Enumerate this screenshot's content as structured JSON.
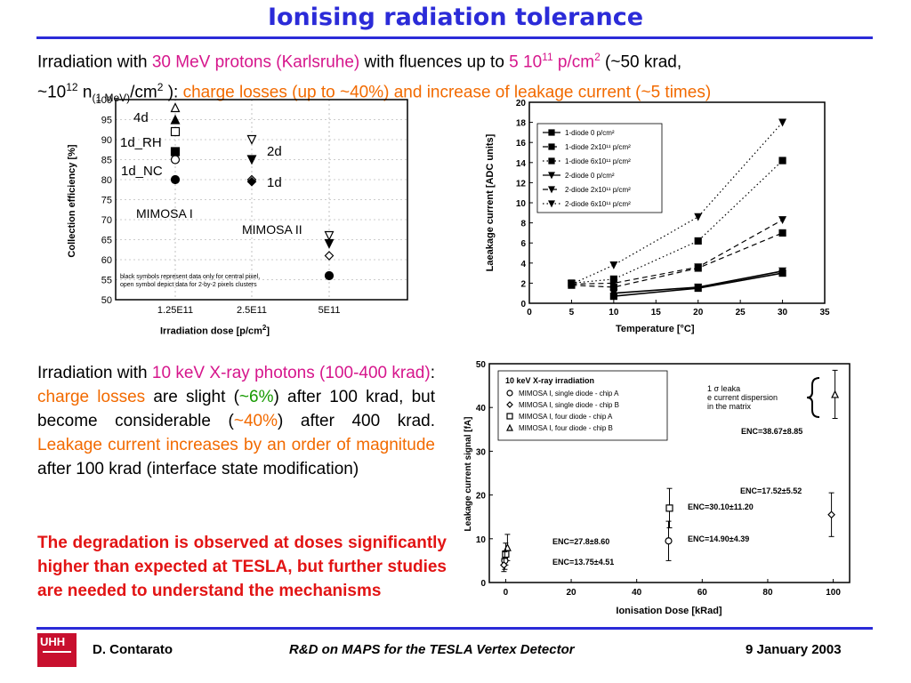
{
  "title": "Ionising radiation tolerance",
  "intro": {
    "l1_a": "Irradiation with ",
    "l1_b": "30 MeV protons (Karlsruhe)",
    "l1_c": " with fluences up to ",
    "l1_d": "5 10",
    "l1_d_sup": "11",
    "l1_e": " p/cm",
    "l1_e_sup": "2",
    "l1_f": " (~50 krad,",
    "l2_a": "~10",
    "l2_a_sup": "12",
    "l2_b": " n",
    "l2_b_sub": "(1 MeV)",
    "l2_c": "/cm",
    "l2_c_sup": "2",
    "l2_d": " ): ",
    "l2_e": "charge losses (up to ~40%) and increase of leakage current (~5 times)"
  },
  "chart1_xlabel_main": "Irradiation dose [p/cm",
  "chart1_xlabel_sup": "2",
  "chart1_xlabel_end": "]",
  "chart2_xlabel": "Temperature [°C]",
  "body2": {
    "a": "Irradiation with ",
    "b": "10 keV X-ray photons (100-400 krad)",
    "c": ": ",
    "d": "charge losses",
    "e": " are slight (",
    "f": "~6%",
    "g": ") after 100 krad, but become considerable (",
    "h": "~40%",
    "i": ") after 400 krad. ",
    "j": "Leakage current increases by an order of magnitude",
    "k": " after 100 krad (interface state modification)"
  },
  "conclusion": "The degradation is observed at doses significantly higher than expected  at TESLA, but further studies are needed to understand the mechanisms",
  "footer": {
    "logo": "UHH",
    "author": "D. Contarato",
    "talk": "R&D on MAPS for the TESLA Vertex Detector",
    "date": "9 January 2003"
  },
  "colors": {
    "accent": "#2b2bd8",
    "pink": "#d6168c",
    "orange": "#f26a00",
    "green": "#169a00",
    "red": "#e21414"
  },
  "chart_data": [
    {
      "type": "scatter",
      "ylabel": "Collection efficiency [%]",
      "xlabel": "Irradiation dose [p/cm2]",
      "categories": [
        "1.25E11",
        "2.5E11",
        "5E11"
      ],
      "yticks": [
        "100",
        "95",
        "90",
        "85",
        "80",
        "75",
        "70",
        "65",
        "60",
        "55",
        "50"
      ],
      "ylim": [
        50,
        100
      ],
      "labels": [
        "4d",
        "1d_RH",
        "1d_NC",
        "2d",
        "1d",
        "MIMOSA I",
        "MIMOSA II"
      ],
      "note": "black symbols represent data only for central pixel, open symbol depict data for 2-by-2 pixels clusters",
      "series": [
        {
          "x": "1.25E11",
          "y": 98,
          "marker": "open-triangle"
        },
        {
          "x": "1.25E11",
          "y": 95,
          "marker": "filled-triangle"
        },
        {
          "x": "1.25E11",
          "y": 92,
          "marker": "open-square"
        },
        {
          "x": "1.25E11",
          "y": 87,
          "marker": "filled-square"
        },
        {
          "x": "1.25E11",
          "y": 85,
          "marker": "open-circle"
        },
        {
          "x": "1.25E11",
          "y": 80,
          "marker": "filled-circle"
        },
        {
          "x": "2.5E11",
          "y": 90,
          "marker": "open-down-triangle"
        },
        {
          "x": "2.5E11",
          "y": 85,
          "marker": "filled-down-triangle"
        },
        {
          "x": "2.5E11",
          "y": 80,
          "marker": "open-diamond"
        },
        {
          "x": "2.5E11",
          "y": 79.5,
          "marker": "filled-diamond"
        },
        {
          "x": "5E11",
          "y": 66,
          "marker": "open-down-triangle"
        },
        {
          "x": "5E11",
          "y": 64,
          "marker": "filled-down-triangle"
        },
        {
          "x": "5E11",
          "y": 61,
          "marker": "open-diamond"
        },
        {
          "x": "5E11",
          "y": 56,
          "marker": "filled-circle"
        }
      ]
    },
    {
      "type": "line",
      "ylabel": "Laeakage current [ADC units]",
      "xlabel": "Temperature [°C]",
      "xlim": [
        0,
        35
      ],
      "ylim": [
        0,
        20
      ],
      "xticks": [
        0,
        5,
        10,
        15,
        20,
        25,
        30,
        35
      ],
      "yticks": [
        0,
        2,
        4,
        6,
        8,
        10,
        12,
        14,
        16,
        18,
        20
      ],
      "series": [
        {
          "name": "1-diode 0 p/cm²",
          "marker": "square",
          "dash": "solid",
          "x": [
            10,
            20,
            30
          ],
          "y": [
            0.7,
            1.5,
            3.0
          ]
        },
        {
          "name": "1-diode 2x10¹¹ p/cm²",
          "marker": "square",
          "dash": "dashed",
          "x": [
            5,
            10,
            20,
            30
          ],
          "y": [
            1.8,
            1.6,
            3.5,
            7.0
          ]
        },
        {
          "name": "1-diode 6x10¹¹ p/cm²",
          "marker": "square",
          "dash": "dotted",
          "x": [
            5,
            10,
            20,
            30
          ],
          "y": [
            2.0,
            2.4,
            6.2,
            14.2
          ]
        },
        {
          "name": "2-diode 0 p/cm²",
          "marker": "down-triangle",
          "dash": "solid",
          "x": [
            10,
            20,
            30
          ],
          "y": [
            1.0,
            1.6,
            3.2
          ]
        },
        {
          "name": "2-diode 2x10¹¹ p/cm²",
          "marker": "down-triangle",
          "dash": "dashed",
          "x": [
            5,
            10,
            20,
            30
          ],
          "y": [
            1.9,
            2.0,
            3.6,
            8.3
          ]
        },
        {
          "name": "2-diode 6x10¹¹ p/cm²",
          "marker": "down-triangle",
          "dash": "dotted",
          "x": [
            5,
            10,
            20,
            30
          ],
          "y": [
            1.9,
            3.8,
            8.6,
            18.0
          ]
        }
      ]
    },
    {
      "type": "scatter",
      "title": "10 keV X-ray irradiation",
      "ylabel": "Leakage current signal [fA]",
      "xlabel": "Ionisation Dose [kRad]",
      "xlim": [
        -5,
        105
      ],
      "ylim": [
        0,
        50
      ],
      "xticks": [
        0,
        20,
        40,
        60,
        80,
        100
      ],
      "yticks": [
        0,
        10,
        20,
        30,
        40,
        50
      ],
      "legend": [
        "MIMOSA I, single diode - chip A",
        "MIMOSA I, single diode - chip B",
        "MIMOSA I, four diode - chip A",
        "MIMOSA I, four diode - chip B"
      ],
      "annotation": "1 σ leakage current dispersion in the matrix",
      "points": [
        {
          "x": 0,
          "y": 8.0,
          "err": 3.0,
          "marker": "triangle"
        },
        {
          "x": 0,
          "y": 6.5,
          "err": 2.5,
          "marker": "square"
        },
        {
          "x": 0,
          "y": 5.0,
          "err": 2.0,
          "marker": "circle"
        },
        {
          "x": 0,
          "y": 4.0,
          "err": 1.5,
          "marker": "diamond"
        },
        {
          "x": 50,
          "y": 17.0,
          "err": 4.5,
          "marker": "square"
        },
        {
          "x": 50,
          "y": 9.5,
          "err": 4.5,
          "marker": "circle"
        },
        {
          "x": 100,
          "y": 15.5,
          "err": 5.0,
          "marker": "diamond"
        },
        {
          "x": 100,
          "y": 43.0,
          "err": 5.5,
          "marker": "triangle"
        }
      ],
      "labels": [
        "ENC=27.8±8.60",
        "ENC=13.75±4.51",
        "ENC=30.10±11.20",
        "ENC=14.90±4.39",
        "ENC=17.52±5.52",
        "ENC=38.67±8.85"
      ]
    }
  ]
}
